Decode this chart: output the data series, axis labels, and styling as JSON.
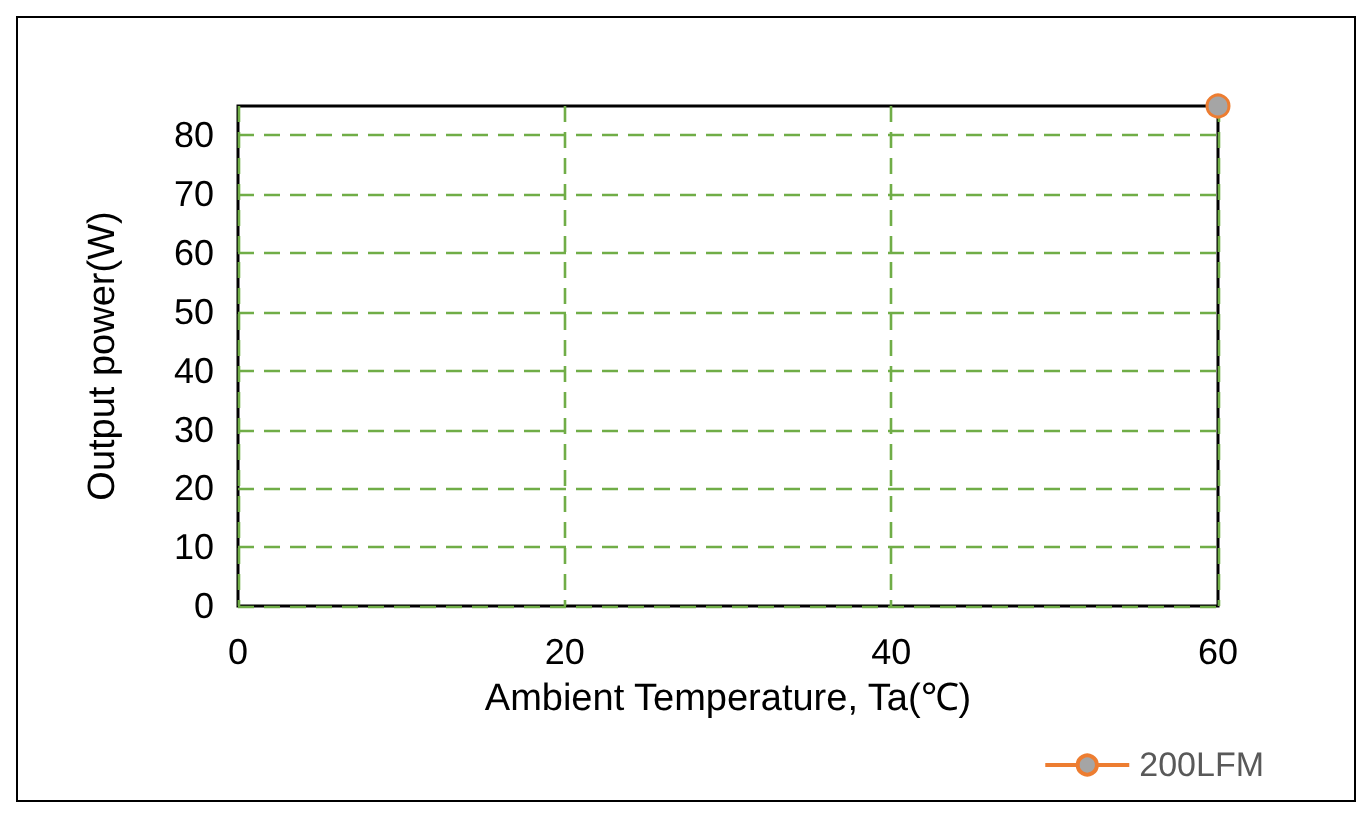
{
  "chart_data": {
    "type": "line",
    "xlabel": "Ambient Temperature, Ta(℃)",
    "ylabel": "Output power(W)",
    "x": [
      60
    ],
    "series": [
      {
        "name": "200LFM",
        "color": "#ed7d31",
        "values": [
          85
        ]
      }
    ],
    "xlim": [
      0,
      60
    ],
    "xticks": [
      0,
      20,
      40,
      60
    ],
    "ylim": [
      0,
      85
    ],
    "yticks": [
      0,
      10,
      20,
      30,
      40,
      50,
      60,
      70,
      80
    ],
    "grid": true,
    "legend": "bottom right",
    "marker": "circle"
  }
}
